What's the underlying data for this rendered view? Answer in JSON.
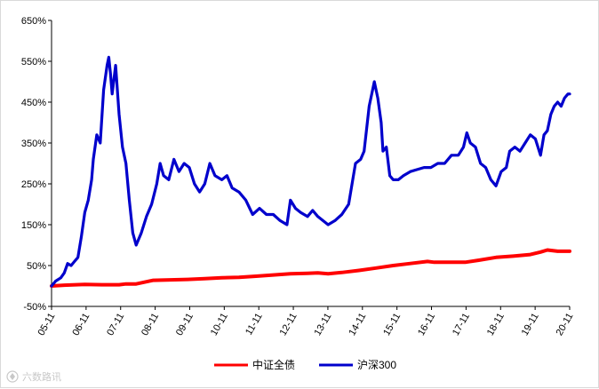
{
  "watermark": {
    "text": "六数路讯"
  },
  "chart_data": {
    "type": "line",
    "title": "",
    "xlabel": "",
    "ylabel": "",
    "ylim": [
      -50,
      650
    ],
    "y_ticks": [
      "650%",
      "550%",
      "450%",
      "350%",
      "250%",
      "150%",
      "50%",
      "-50%"
    ],
    "y_tick_values": [
      650,
      550,
      450,
      350,
      250,
      150,
      50,
      -50
    ],
    "x_tick_labels": [
      "05-11",
      "06-11",
      "07-11",
      "08-11",
      "09-11",
      "10-11",
      "11-11",
      "12-11",
      "13-11",
      "14-11",
      "15-11",
      "16-11",
      "17-11",
      "18-11",
      "19-11",
      "20-11"
    ],
    "x_range": [
      2005.83,
      2020.95
    ],
    "grid": false,
    "legend_position": "bottom",
    "series": [
      {
        "name": "中证全债",
        "color": "#ff0000",
        "x": [
          2005.83,
          2006.2,
          2006.8,
          2007.3,
          2007.8,
          2008.0,
          2008.3,
          2008.8,
          2009.3,
          2009.8,
          2010.3,
          2010.8,
          2011.3,
          2011.8,
          2012.3,
          2012.8,
          2013.3,
          2013.6,
          2013.9,
          2014.3,
          2014.8,
          2015.3,
          2015.8,
          2016.3,
          2016.8,
          2017.0,
          2017.5,
          2017.9,
          2018.3,
          2018.8,
          2019.3,
          2019.8,
          2020.1,
          2020.3,
          2020.6,
          2020.95
        ],
        "values": [
          0,
          2,
          4,
          3,
          3,
          5,
          5,
          14,
          15,
          16,
          18,
          20,
          21,
          24,
          27,
          30,
          31,
          32,
          30,
          33,
          38,
          44,
          50,
          55,
          60,
          58,
          58,
          58,
          63,
          70,
          73,
          77,
          83,
          88,
          85,
          85
        ]
      },
      {
        "name": "沪深300",
        "color": "#0000cc",
        "x": [
          2005.83,
          2005.95,
          2006.1,
          2006.2,
          2006.3,
          2006.4,
          2006.5,
          2006.6,
          2006.7,
          2006.8,
          2006.9,
          2007.0,
          2007.05,
          2007.15,
          2007.25,
          2007.35,
          2007.45,
          2007.5,
          2007.55,
          2007.6,
          2007.7,
          2007.8,
          2007.9,
          2008.0,
          2008.1,
          2008.2,
          2008.3,
          2008.45,
          2008.6,
          2008.75,
          2008.9,
          2009.0,
          2009.1,
          2009.25,
          2009.4,
          2009.55,
          2009.7,
          2009.85,
          2010.0,
          2010.15,
          2010.3,
          2010.45,
          2010.6,
          2010.8,
          2010.95,
          2011.1,
          2011.3,
          2011.5,
          2011.7,
          2011.9,
          2012.1,
          2012.3,
          2012.5,
          2012.7,
          2012.8,
          2012.95,
          2013.1,
          2013.3,
          2013.45,
          2013.6,
          2013.75,
          2013.9,
          2014.1,
          2014.3,
          2014.5,
          2014.7,
          2014.85,
          2014.95,
          2015.1,
          2015.25,
          2015.35,
          2015.45,
          2015.5,
          2015.6,
          2015.7,
          2015.8,
          2015.95,
          2016.1,
          2016.3,
          2016.5,
          2016.7,
          2016.9,
          2017.1,
          2017.3,
          2017.5,
          2017.7,
          2017.85,
          2017.95,
          2018.05,
          2018.2,
          2018.35,
          2018.5,
          2018.65,
          2018.8,
          2018.95,
          2019.1,
          2019.2,
          2019.35,
          2019.5,
          2019.65,
          2019.8,
          2019.95,
          2020.1,
          2020.2,
          2020.3,
          2020.4,
          2020.5,
          2020.6,
          2020.7,
          2020.8,
          2020.9,
          2020.95
        ],
        "values": [
          0,
          12,
          20,
          32,
          55,
          50,
          60,
          70,
          120,
          180,
          210,
          260,
          310,
          370,
          350,
          480,
          540,
          560,
          520,
          470,
          540,
          420,
          340,
          300,
          210,
          130,
          100,
          130,
          170,
          200,
          250,
          300,
          270,
          260,
          310,
          280,
          300,
          290,
          250,
          230,
          250,
          300,
          270,
          260,
          270,
          240,
          230,
          210,
          175,
          190,
          175,
          175,
          160,
          150,
          210,
          190,
          180,
          170,
          185,
          170,
          160,
          150,
          160,
          175,
          200,
          300,
          310,
          330,
          440,
          500,
          460,
          400,
          330,
          340,
          270,
          260,
          260,
          270,
          280,
          285,
          290,
          290,
          300,
          300,
          320,
          320,
          340,
          375,
          350,
          340,
          300,
          290,
          260,
          245,
          280,
          290,
          330,
          340,
          330,
          350,
          370,
          360,
          320,
          370,
          380,
          420,
          440,
          450,
          440,
          460,
          470,
          470
        ]
      }
    ]
  }
}
